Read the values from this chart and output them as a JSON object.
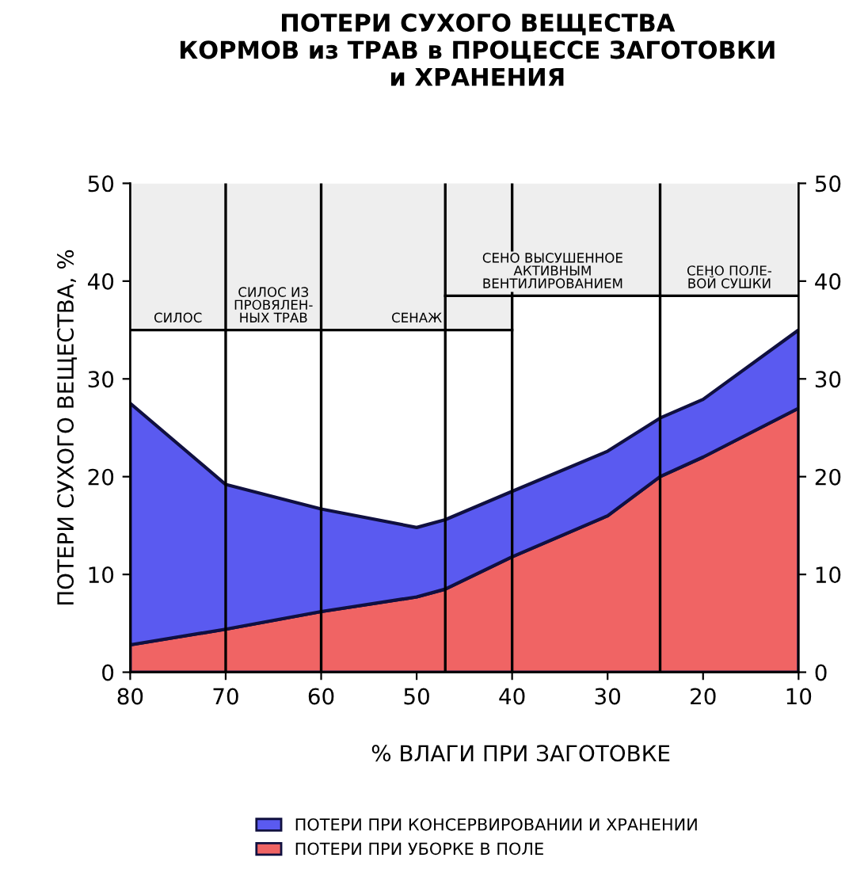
{
  "chart_data": {
    "type": "area",
    "stacked": true,
    "title": "ПОТЕРИ СУХОГО ВЕЩЕСТВА\nКОРМОВ из ТРАВ в ПРОЦЕССЕ ЗАГОТОВКИ\nи ХРАНЕНИЯ",
    "xlabel": "% ВЛАГИ ПРИ ЗАГОТОВКЕ",
    "ylabel": "ПОТЕРИ СУХОГО ВЕЩЕСТВА, %",
    "x": [
      80,
      70,
      60,
      50,
      47,
      40,
      30,
      24.5,
      20,
      10
    ],
    "series": [
      {
        "name": "ПОТЕРИ ПРИ УБОРКЕ В ПОЛЕ",
        "color": "#f06464",
        "values": [
          2.8,
          4.4,
          6.2,
          7.7,
          8.5,
          11.8,
          16,
          20,
          22,
          27
        ]
      },
      {
        "name": "ПОТЕРИ ПРИ КОНСЕРВИРОВАНИИ И ХРАНЕНИИ",
        "color": "#5a5af0",
        "values": [
          24.7,
          14.8,
          10.5,
          7.1,
          7.1,
          6.7,
          6.6,
          6,
          5.9,
          8
        ]
      }
    ],
    "xlim": [
      80,
      10
    ],
    "xticks": [
      80,
      70,
      60,
      50,
      40,
      30,
      20,
      10
    ],
    "ylim": [
      0,
      50
    ],
    "yticks": [
      0,
      10,
      20,
      30,
      40,
      50
    ],
    "y2lim": [
      0,
      50
    ],
    "y2ticks": [
      0,
      10,
      20,
      30,
      40,
      50
    ],
    "ref_lines": [
      {
        "axis": "x",
        "value": 70,
        "color": "#000000"
      },
      {
        "axis": "x",
        "value": 60,
        "color": "#000000"
      },
      {
        "axis": "x",
        "value": 47,
        "color": "#000000"
      },
      {
        "axis": "x",
        "value": 40,
        "color": "#000000"
      },
      {
        "axis": "x",
        "value": 24.5,
        "color": "#000000"
      }
    ],
    "bands": [
      {
        "axis": "x",
        "from": 80,
        "to": 70,
        "label": "СИЛОС"
      },
      {
        "axis": "x",
        "from": 70,
        "to": 60,
        "label": "СИЛОС ИЗ\nПРОВЯЛЕН-\nНЫХ ТРАВ"
      },
      {
        "axis": "x",
        "from": 60,
        "to": 40,
        "label": "СЕНАЖ"
      },
      {
        "axis": "x",
        "from": 47,
        "to": 24.5,
        "label": "СЕНО ВЫСУШЕННОЕ\nАКТИВНЫМ\nВЕНТИЛИРОВАНИЕМ"
      },
      {
        "axis": "x",
        "from": 24.5,
        "to": 10,
        "label": "СЕНО ПОЛЕ-\nВОЙ СУШКИ"
      }
    ],
    "grid": false,
    "legend": "bottom"
  }
}
